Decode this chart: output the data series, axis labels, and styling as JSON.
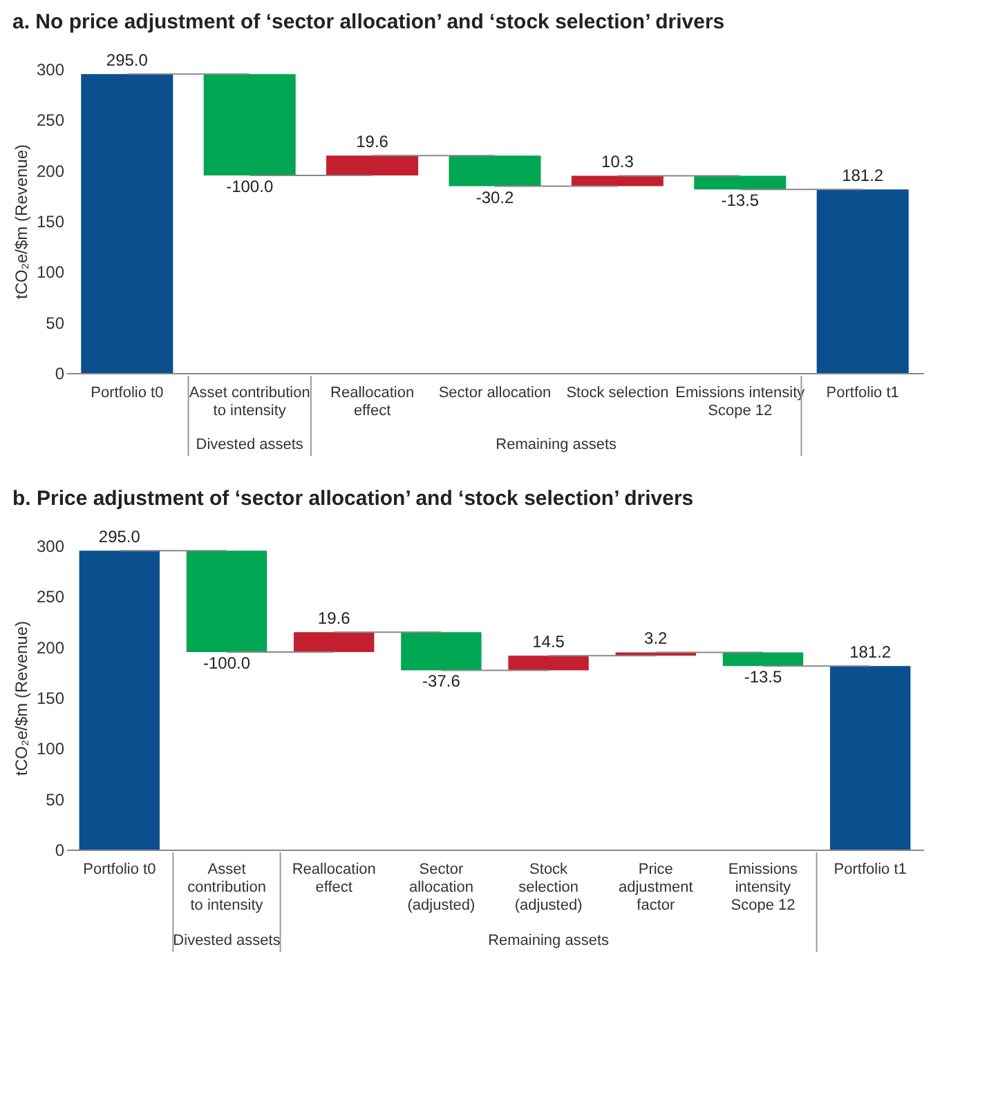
{
  "chart_data": [
    {
      "type": "bar",
      "title": "a.  No price adjustment of ‘sector allocation’ and ‘stock selection’ drivers",
      "ylabel": "tCO₂e/$m (Revenue)",
      "categories": [
        "Portfolio t0",
        "Asset contribution\nto intensity",
        "Reallocation\neffect",
        "Sector allocation",
        "Stock selection",
        "Emissions intensity\nScope 12",
        "Portfolio t1"
      ],
      "values": [
        295.0,
        -100.0,
        19.6,
        -30.2,
        10.3,
        -13.5,
        181.2
      ],
      "base": [
        0,
        295.0,
        195.0,
        214.6,
        184.4,
        194.7,
        0
      ],
      "colors": [
        "#0b4f8f",
        "#00a651",
        "#c41f2e",
        "#00a651",
        "#c41f2e",
        "#00a651",
        "#0b4f8f"
      ],
      "value_labels": [
        "295.0",
        "-100.0",
        "19.6",
        "-30.2",
        "10.3",
        "-13.5",
        "181.2"
      ],
      "ylim": [
        0,
        300
      ],
      "yticks": [
        0,
        50,
        100,
        150,
        200,
        250,
        300
      ],
      "grid": false,
      "annotations": [
        "Divested assets",
        "Remaining assets"
      ]
    },
    {
      "type": "bar",
      "title": "b.  Price adjustment of ‘sector allocation’ and ‘stock selection’ drivers",
      "ylabel": "tCO₂e/$m (Revenue)",
      "categories": [
        "Portfolio t0",
        "Asset\ncontribution\nto intensity",
        "Reallocation\neffect",
        "Sector\nallocation\n(adjusted)",
        "Stock\nselection\n(adjusted)",
        "Price\nadjustment\nfactor",
        "Emissions\nintensity\nScope 12",
        "Portfolio t1"
      ],
      "values": [
        295.0,
        -100.0,
        19.6,
        -37.6,
        14.5,
        3.2,
        -13.5,
        181.2
      ],
      "base": [
        0,
        295.0,
        195.0,
        214.6,
        177.0,
        191.5,
        194.7,
        0
      ],
      "colors": [
        "#0b4f8f",
        "#00a651",
        "#c41f2e",
        "#00a651",
        "#c41f2e",
        "#c41f2e",
        "#00a651",
        "#0b4f8f"
      ],
      "value_labels": [
        "295.0",
        "-100.0",
        "19.6",
        "-37.6",
        "14.5",
        "3.2",
        "-13.5",
        "181.2"
      ],
      "ylim": [
        0,
        300
      ],
      "yticks": [
        0,
        50,
        100,
        150,
        200,
        250,
        300
      ],
      "grid": false,
      "annotations": [
        "Divested assets",
        "Remaining assets"
      ]
    }
  ]
}
